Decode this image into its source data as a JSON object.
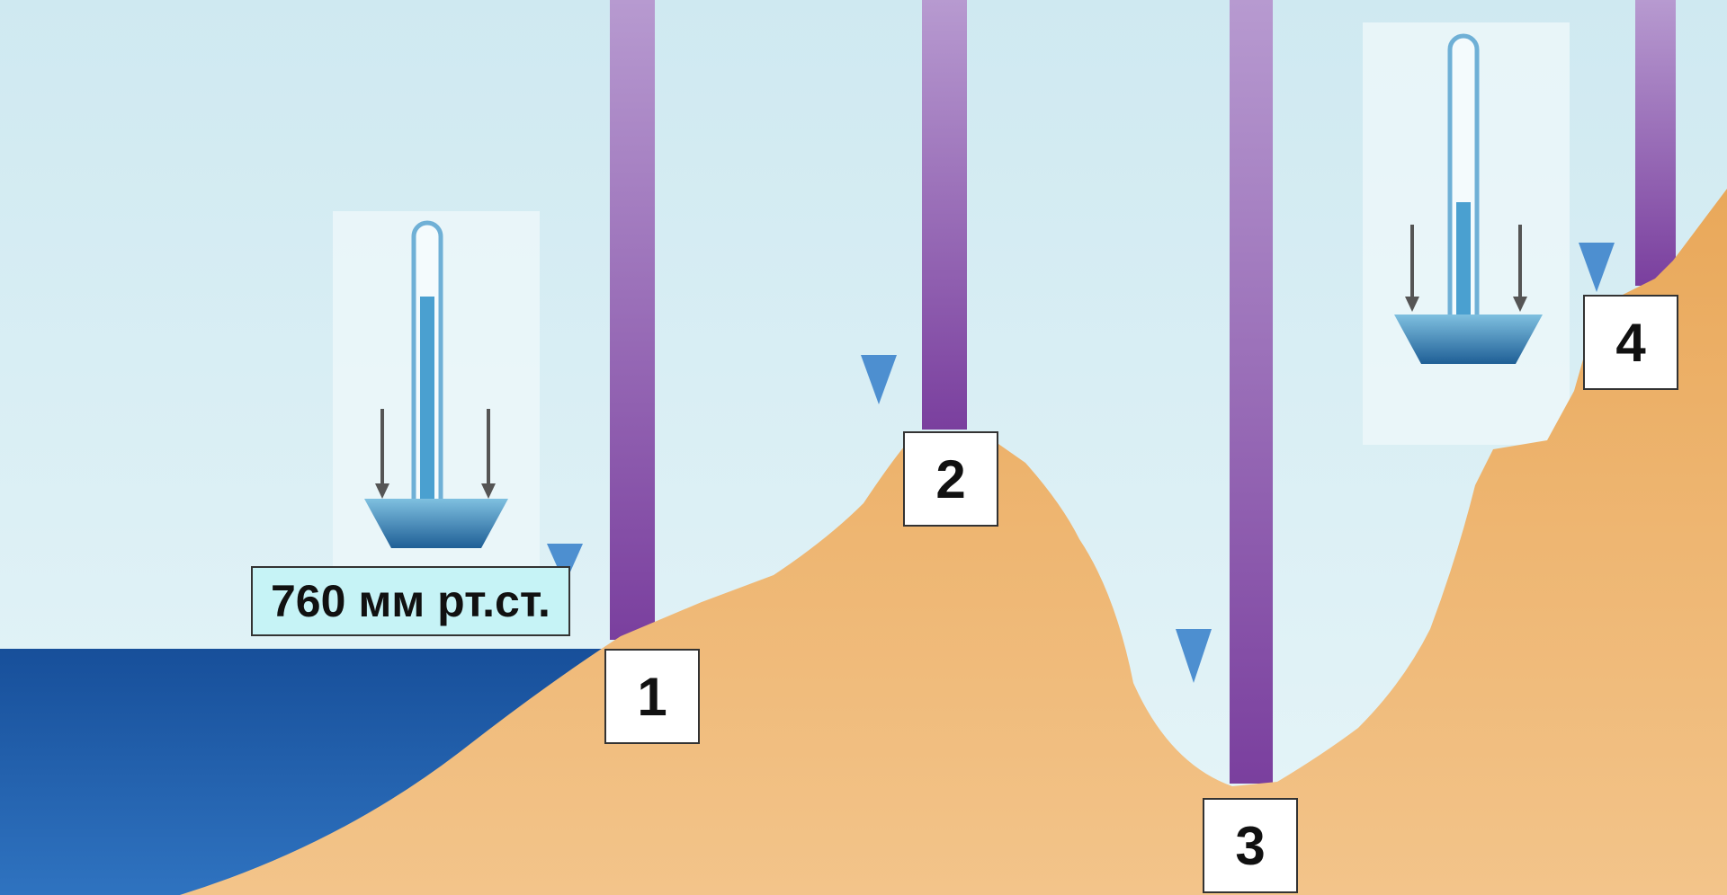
{
  "pressure_label": "760 мм рт.ст.",
  "points": [
    {
      "id": "1",
      "label": "1"
    },
    {
      "id": "2",
      "label": "2"
    },
    {
      "id": "3",
      "label": "3"
    },
    {
      "id": "4",
      "label": "4"
    }
  ],
  "colors": {
    "sky": "#d8eef4",
    "sea": "#1f5fa8",
    "land": "#eeb268",
    "air_column": "#8c5ab0",
    "arrow": "#3d7fc0",
    "barometer": "#2f82b8",
    "label_bg": "#ffffff",
    "pressure_label_bg": "#c6f3f6"
  },
  "icons": [
    "barometer-icon",
    "pressure-arrow-icon",
    "air-column-icon"
  ]
}
